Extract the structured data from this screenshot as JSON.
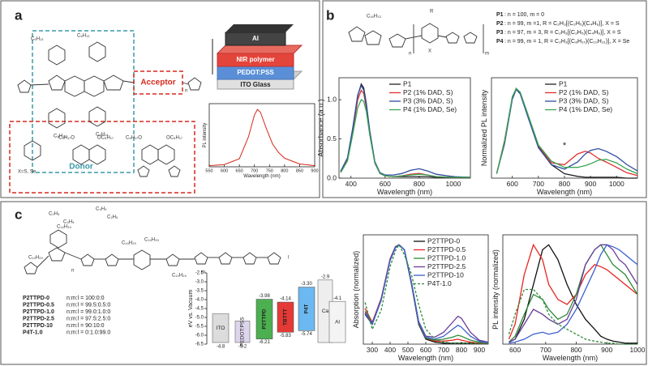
{
  "panels": {
    "a": {
      "label": "a",
      "donor": "Donor",
      "acceptor": "Acceptor",
      "substituents": [
        "C₆H₁₃",
        "C₆H₁₃",
        "C₆H₁₃",
        "C₆H₁₃"
      ],
      "alkoxy": [
        "C₈H₁₇O",
        "OC₈H₁₇",
        "C₈H₁₇O",
        "OC₈H₁₇"
      ],
      "x_note": "X=S, Se",
      "repeat": "n",
      "device": [
        "Al",
        "NIR polymer",
        "PEDOT:PSS",
        "ITO Glass"
      ]
    },
    "b": {
      "label": "b",
      "side_chain": "C₁₆H₃₃",
      "r": "R",
      "x": "X",
      "n": "n",
      "m": "m",
      "polymers": [
        {
          "name": "P1",
          "text": ": n = 100, m = 0"
        },
        {
          "name": "P2",
          "text": ": n = 99, m =1, R = C₂H₃[(C₂H₅)(C₄H₉)], X = S"
        },
        {
          "name": "P3",
          "text": ": n = 97, m = 3, R = C₂H₃[(C₂H₅)(C₄H₉)], X = S"
        },
        {
          "name": "P4",
          "text": ": n = 99, m = 1, R = C₂H₃[(C₈H₁₇)(C₁₀H₂₁)], X = Se"
        }
      ]
    },
    "c": {
      "label": "c",
      "side_chains": [
        "C₂H₅",
        "C₄H₉",
        "C₄H₉",
        "C₂H₅",
        "C₁₄H₂₉",
        "C₁₄H₂₉",
        "C₁₄H₂₉",
        "C₁₄H₂₉",
        "C₁₄H₂₉"
      ],
      "repeats": [
        "n",
        "m",
        "l"
      ],
      "compositions": [
        {
          "name": "P2TTPD-0",
          "ratio": "n:m:l = 100:0:0"
        },
        {
          "name": "P2TTPD-0.5",
          "ratio": "n:m:l = 99.5:0.5:0"
        },
        {
          "name": "P2TTPD-1.0",
          "ratio": "n:m:l = 99.0:1.0:0"
        },
        {
          "name": "P2TTPD-2.5",
          "ratio": "n:m:l = 97.5:2.5:0"
        },
        {
          "name": "P2TTPD-10",
          "ratio": "n:m:l = 90:10:0"
        },
        {
          "name": "P4T-1.0",
          "ratio": "n:m:l = 0:1.0:99.0"
        }
      ]
    }
  },
  "chart_data": [
    {
      "type": "line",
      "x_label": "Wavelength (nm)",
      "y_label": "PL intensity",
      "x": [
        550,
        600,
        650,
        680,
        700,
        710,
        720,
        740,
        760,
        780,
        800,
        850,
        900
      ],
      "xlim": [
        550,
        900
      ],
      "xticks": [
        550,
        600,
        650,
        700,
        750,
        800,
        850,
        900
      ],
      "ylim": [
        0,
        1.1
      ],
      "series": [
        {
          "color": "#d62a1e",
          "values": [
            0.02,
            0.04,
            0.14,
            0.52,
            0.9,
            1.0,
            0.95,
            0.66,
            0.4,
            0.25,
            0.15,
            0.05,
            0.02
          ]
        }
      ]
    },
    {
      "type": "line",
      "x_label": "Wavelength (nm)",
      "y_label": "Absorbance (a.u.)",
      "x": [
        340,
        380,
        410,
        440,
        460,
        475,
        490,
        510,
        540,
        570,
        600,
        650,
        700,
        750,
        800,
        850,
        900,
        1000,
        1100
      ],
      "xlim": [
        330,
        1100
      ],
      "xticks": [
        400,
        600,
        800,
        1000
      ],
      "ylim": [
        0,
        1.28
      ],
      "yticks": [
        {
          "value": 0,
          "label": "0.0"
        },
        0.5,
        {
          "value": 1,
          "label": "1.0"
        }
      ],
      "legend": "upper right",
      "series": [
        {
          "name": "P1",
          "color": "#222222",
          "values": [
            0.08,
            0.25,
            0.62,
            1.05,
            1.2,
            1.15,
            0.95,
            0.6,
            0.2,
            0.06,
            0.03,
            0.02,
            0.02,
            0.02,
            0.02,
            0.02,
            0.01,
            0.01,
            0.01
          ]
        },
        {
          "name": "P2 (1% DAD, S)",
          "color": "#e03030",
          "values": [
            0.08,
            0.24,
            0.6,
            1.0,
            1.12,
            1.08,
            0.9,
            0.57,
            0.19,
            0.06,
            0.03,
            0.02,
            0.03,
            0.05,
            0.06,
            0.04,
            0.02,
            0.01,
            0.01
          ]
        },
        {
          "name": "P3 (3% DAD, S)",
          "color": "#2e4e9e",
          "values": [
            0.09,
            0.26,
            0.63,
            1.06,
            1.18,
            1.12,
            0.93,
            0.6,
            0.21,
            0.07,
            0.04,
            0.04,
            0.06,
            0.1,
            0.12,
            0.09,
            0.05,
            0.02,
            0.01
          ]
        },
        {
          "name": "P4 (1% DAD, Se)",
          "color": "#3aa655",
          "values": [
            0.07,
            0.22,
            0.55,
            0.9,
            1.0,
            0.98,
            0.85,
            0.55,
            0.19,
            0.06,
            0.03,
            0.02,
            0.03,
            0.04,
            0.05,
            0.04,
            0.02,
            0.01,
            0.01
          ]
        }
      ]
    },
    {
      "type": "line",
      "x_label": "Wavelength (nm)",
      "y_label": "Normalized PL intensity",
      "annotation": "*",
      "x": [
        540,
        570,
        600,
        615,
        630,
        660,
        700,
        750,
        800,
        850,
        880,
        900,
        930,
        960,
        1000,
        1040,
        1080
      ],
      "xlim": [
        520,
        1080
      ],
      "xticks": [
        600,
        700,
        800,
        900,
        1000
      ],
      "ylim": [
        0,
        1.12
      ],
      "legend": "upper right",
      "series": [
        {
          "name": "P1",
          "color": "#222222",
          "values": [
            0.05,
            0.4,
            0.9,
            1.0,
            0.95,
            0.7,
            0.35,
            0.15,
            0.05,
            0.02,
            0.01,
            0.01,
            0.01,
            0.01,
            0.01,
            0.0,
            0.0
          ]
        },
        {
          "name": "P2 (1% DAD, S)",
          "color": "#e03030",
          "values": [
            0.05,
            0.42,
            0.9,
            1.0,
            0.95,
            0.7,
            0.36,
            0.17,
            0.15,
            0.27,
            0.3,
            0.28,
            0.22,
            0.18,
            0.12,
            0.06,
            0.03
          ]
        },
        {
          "name": "P3 (3% DAD, S)",
          "color": "#2e4e9e",
          "values": [
            0.05,
            0.38,
            0.88,
            0.99,
            0.94,
            0.68,
            0.34,
            0.15,
            0.1,
            0.18,
            0.27,
            0.31,
            0.33,
            0.3,
            0.24,
            0.15,
            0.08
          ]
        },
        {
          "name": "P4 (1% DAD, Se)",
          "color": "#3aa655",
          "values": [
            0.05,
            0.41,
            0.91,
            1.0,
            0.96,
            0.71,
            0.37,
            0.19,
            0.12,
            0.12,
            0.14,
            0.16,
            0.2,
            0.21,
            0.17,
            0.1,
            0.05
          ]
        }
      ]
    },
    {
      "type": "energy",
      "y_label": "eV vs. Vacuum",
      "ylim": [
        -6.5,
        -2.5
      ],
      "yticks": [
        -2.5,
        {
          "value": -3,
          "label": "-3.0"
        },
        -3.5,
        {
          "value": -4,
          "label": "-4.0"
        },
        -4.5,
        {
          "value": -5,
          "label": "-5.0"
        },
        -5.5,
        {
          "value": -6,
          "label": "-6.0"
        },
        -6.5
      ],
      "materials": [
        {
          "name": "ITO",
          "color": "#dcdcdc",
          "values": [
            -4.8
          ]
        },
        {
          "name": "PEDOT:PSS",
          "color": "#ddd5ec",
          "values": [
            -5.2
          ]
        },
        {
          "name": "P2TTPD",
          "color": "#4caf50",
          "values": [
            -3.98,
            -6.21
          ]
        },
        {
          "name": "TBTTT",
          "color": "#e53935",
          "values": [
            -4.14,
            -5.83
          ]
        },
        {
          "name": "P4T",
          "color": "#6cb8f0",
          "values": [
            -3.3,
            -5.74
          ],
          "value_labels": [
            "-3.30",
            "-5.74"
          ]
        },
        {
          "name": "Ca",
          "color": "#eeeeee",
          "values": [
            -2.9
          ]
        },
        {
          "name": "Al",
          "color": "#f4f4f4",
          "values": [
            -4.1
          ]
        }
      ]
    },
    {
      "type": "line",
      "x_label": "Wavelength (nm)",
      "y_label": "Absorption (normalized)",
      "x": [
        260,
        300,
        350,
        400,
        430,
        450,
        480,
        520,
        560,
        600,
        650,
        700,
        750,
        780,
        800,
        850,
        900,
        950
      ],
      "xlim": [
        250,
        950
      ],
      "xticks": [
        300,
        400,
        500,
        600,
        700,
        800,
        900
      ],
      "ylim": [
        0,
        1.1
      ],
      "legend": "upper right",
      "series": [
        {
          "name": "P2TTPD-0",
          "color": "#111111",
          "values": [
            0.3,
            0.2,
            0.45,
            0.85,
            0.98,
            1.0,
            0.95,
            0.6,
            0.2,
            0.05,
            0.02,
            0.01,
            0.01,
            0.01,
            0.01,
            0.01,
            0.01,
            0.01
          ]
        },
        {
          "name": "P2TTPD-0.5",
          "color": "#e8231e",
          "values": [
            0.36,
            0.22,
            0.46,
            0.86,
            0.98,
            1.0,
            0.95,
            0.61,
            0.21,
            0.06,
            0.03,
            0.03,
            0.04,
            0.05,
            0.04,
            0.02,
            0.01,
            0.01
          ]
        },
        {
          "name": "P2TTPD-1.0",
          "color": "#2e8b3a",
          "values": [
            0.33,
            0.21,
            0.45,
            0.85,
            0.98,
            1.0,
            0.95,
            0.61,
            0.21,
            0.06,
            0.04,
            0.05,
            0.07,
            0.09,
            0.08,
            0.04,
            0.02,
            0.01
          ]
        },
        {
          "name": "P2TTPD-2.5",
          "color": "#6a3d9a",
          "values": [
            0.32,
            0.21,
            0.45,
            0.85,
            0.98,
            1.0,
            0.95,
            0.62,
            0.23,
            0.08,
            0.07,
            0.12,
            0.22,
            0.28,
            0.26,
            0.12,
            0.04,
            0.02
          ]
        },
        {
          "name": "P2TTPD-10",
          "color": "#3a5fcd",
          "values": [
            0.31,
            0.2,
            0.44,
            0.84,
            0.97,
            1.0,
            0.95,
            0.62,
            0.22,
            0.07,
            0.05,
            0.08,
            0.15,
            0.19,
            0.17,
            0.08,
            0.03,
            0.01
          ]
        },
        {
          "name": "P4T-1.0",
          "color": "#2e8b3a",
          "dash": true,
          "values": [
            0.42,
            0.15,
            0.34,
            0.78,
            0.94,
            1.0,
            0.9,
            0.7,
            0.4,
            0.15,
            0.05,
            0.02,
            0.01,
            0.01,
            0.01,
            0.01,
            0.01,
            0.01
          ]
        }
      ]
    },
    {
      "type": "line",
      "x_label": "Wavelength (nm)",
      "y_label": "PL intensity (normalized)",
      "x": [
        580,
        600,
        630,
        660,
        690,
        710,
        740,
        770,
        800,
        830,
        860,
        880,
        900,
        920,
        940,
        960,
        980,
        1000
      ],
      "xlim": [
        560,
        1000
      ],
      "xticks": [
        600,
        700,
        800,
        900,
        1000
      ],
      "ylim": [
        0,
        1.1
      ],
      "series": [
        {
          "name": "P2TTPD-0",
          "color": "#111111",
          "values": [
            0.02,
            0.05,
            0.25,
            0.6,
            0.95,
            1.0,
            0.85,
            0.6,
            0.4,
            0.25,
            0.15,
            0.08,
            0.05,
            0.03,
            0.02,
            0.01,
            0.01,
            0.01
          ]
        },
        {
          "name": "P2TTPD-0.5",
          "color": "#e8231e",
          "values": [
            0.05,
            0.2,
            0.7,
            1.0,
            0.85,
            0.6,
            0.45,
            0.4,
            0.5,
            0.7,
            0.8,
            0.78,
            0.75,
            0.7,
            0.65,
            0.6,
            0.55,
            0.5
          ]
        },
        {
          "name": "P2TTPD-1.0",
          "color": "#2e8b3a",
          "values": [
            0.02,
            0.08,
            0.3,
            0.5,
            0.45,
            0.35,
            0.25,
            0.3,
            0.5,
            0.8,
            0.95,
            1.0,
            0.9,
            0.8,
            0.75,
            0.7,
            0.6,
            0.5
          ]
        },
        {
          "name": "P2TTPD-2.5",
          "color": "#6a3d9a",
          "values": [
            0.02,
            0.05,
            0.2,
            0.35,
            0.3,
            0.25,
            0.2,
            0.25,
            0.45,
            0.8,
            0.95,
            1.0,
            1.0,
            0.95,
            0.85,
            0.8,
            0.7,
            0.6
          ]
        },
        {
          "name": "P2TTPD-10",
          "color": "#3a5fcd",
          "values": [
            0.01,
            0.02,
            0.05,
            0.1,
            0.12,
            0.1,
            0.12,
            0.2,
            0.35,
            0.55,
            0.75,
            0.9,
            1.0,
            0.98,
            0.95,
            0.9,
            0.85,
            0.8
          ]
        },
        {
          "name": "P4T-1.0",
          "color": "#2e8b3a",
          "dash": true,
          "values": [
            0.1,
            0.3,
            0.55,
            0.55,
            0.45,
            0.3,
            0.2,
            0.15,
            0.1,
            0.05,
            0.03,
            0.02,
            0.01,
            0.01,
            0.0,
            0.0,
            0.0,
            0.0
          ]
        }
      ]
    }
  ]
}
